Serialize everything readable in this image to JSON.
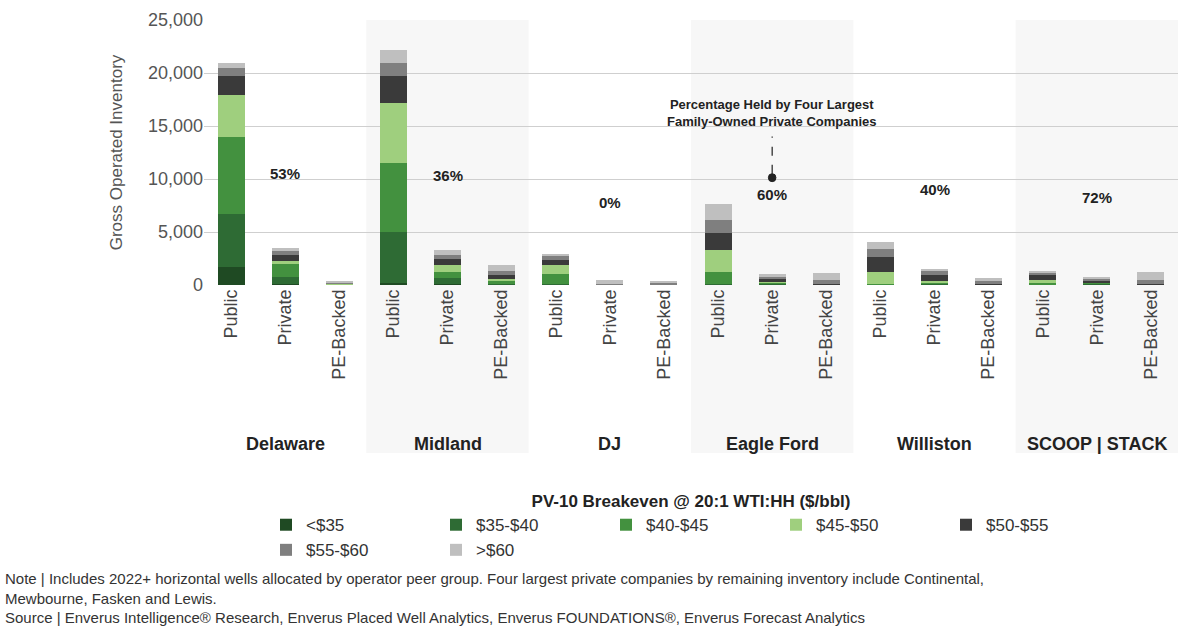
{
  "chart_data": {
    "type": "bar",
    "stacked": true,
    "grid": true,
    "legend": "bottom",
    "legend_title": "PV-10 Breakeven @ 20:1 WTI:HH ($/bbl)",
    "y_label": "Gross Operated Inventory",
    "groups": [
      "Delaware",
      "Midland",
      "DJ",
      "Eagle Ford",
      "Williston",
      "SCOOP | STACK"
    ],
    "categories": [
      "Public",
      "Private",
      "PE-Backed",
      "Public",
      "Private",
      "PE-Backed",
      "Public",
      "Private",
      "PE-Backed",
      "Public",
      "Private",
      "PE-Backed",
      "Public",
      "Private",
      "PE-Backed",
      "Public",
      "Private",
      "PE-Backed"
    ],
    "series": [
      {
        "name": "<$35",
        "color": "#1f4a23",
        "values": [
          1700,
          100,
          0,
          200,
          100,
          0,
          0,
          0,
          0,
          0,
          0,
          0,
          0,
          0,
          0,
          0,
          0,
          0
        ]
      },
      {
        "name": "$35-$40",
        "color": "#2e6b34",
        "values": [
          5000,
          700,
          0,
          4800,
          600,
          100,
          100,
          0,
          0,
          100,
          100,
          0,
          0,
          100,
          0,
          0,
          100,
          0
        ]
      },
      {
        "name": "$40-$45",
        "color": "#43913f",
        "values": [
          7300,
          1200,
          50,
          6500,
          500,
          300,
          900,
          0,
          0,
          1100,
          100,
          0,
          100,
          100,
          0,
          200,
          100,
          0
        ]
      },
      {
        "name": "$45-$50",
        "color": "#9fcf7e",
        "values": [
          3900,
          300,
          50,
          5700,
          700,
          200,
          900,
          0,
          0,
          2100,
          100,
          0,
          1100,
          200,
          0,
          300,
          0,
          0
        ]
      },
      {
        "name": "$50-$55",
        "color": "#3a3a3a",
        "values": [
          1800,
          500,
          50,
          2500,
          600,
          300,
          500,
          0,
          0,
          1600,
          300,
          100,
          1400,
          500,
          100,
          400,
          200,
          100
        ]
      },
      {
        "name": "$55-$60",
        "color": "#7f7f7f",
        "values": [
          800,
          400,
          100,
          1200,
          300,
          400,
          300,
          100,
          150,
          1200,
          200,
          400,
          800,
          400,
          300,
          200,
          200,
          400
        ]
      },
      {
        "name": ">$60",
        "color": "#bfbfbf",
        "values": [
          400,
          300,
          50,
          1300,
          500,
          600,
          200,
          400,
          200,
          1500,
          200,
          600,
          700,
          200,
          300,
          200,
          100,
          700
        ]
      }
    ],
    "ylim": [
      0,
      25000
    ],
    "yticks": [
      0,
      {
        "value": 5000,
        "label": "5,000"
      },
      {
        "value": 10000,
        "label": "10,000"
      },
      {
        "value": 15000,
        "label": "15,000"
      },
      {
        "value": 20000,
        "label": "20,000"
      },
      {
        "value": 25000,
        "label": "25,000"
      }
    ],
    "annotations": [
      {
        "group": "Delaware",
        "text": "53%",
        "y": 10500
      },
      {
        "group": "Midland",
        "text": "36%",
        "y": 10300
      },
      {
        "group": "DJ",
        "text": "0%",
        "y": 7800
      },
      {
        "group": "Eagle Ford",
        "text": "60%",
        "y": 8500
      },
      {
        "group": "Williston",
        "text": "40%",
        "y": 9000
      },
      {
        "group": "SCOOP | STACK",
        "text": "72%",
        "y": 8300
      }
    ],
    "callout": {
      "group": "Eagle Ford",
      "text_lines": [
        "Percentage Held by Four Largest",
        "Family-Owned Private Companies"
      ]
    },
    "note_lines": [
      "Note | Includes 2022+ horizontal wells allocated by operator peer group. Four largest private companies by remaining inventory include Continental,",
      "Mewbourne, Fasken and Lewis.",
      "Source | Enverus Intelligence® Research, Enverus Placed Well Analytics, Enverus FOUNDATIONS®, Enverus Forecast Analytics"
    ]
  }
}
